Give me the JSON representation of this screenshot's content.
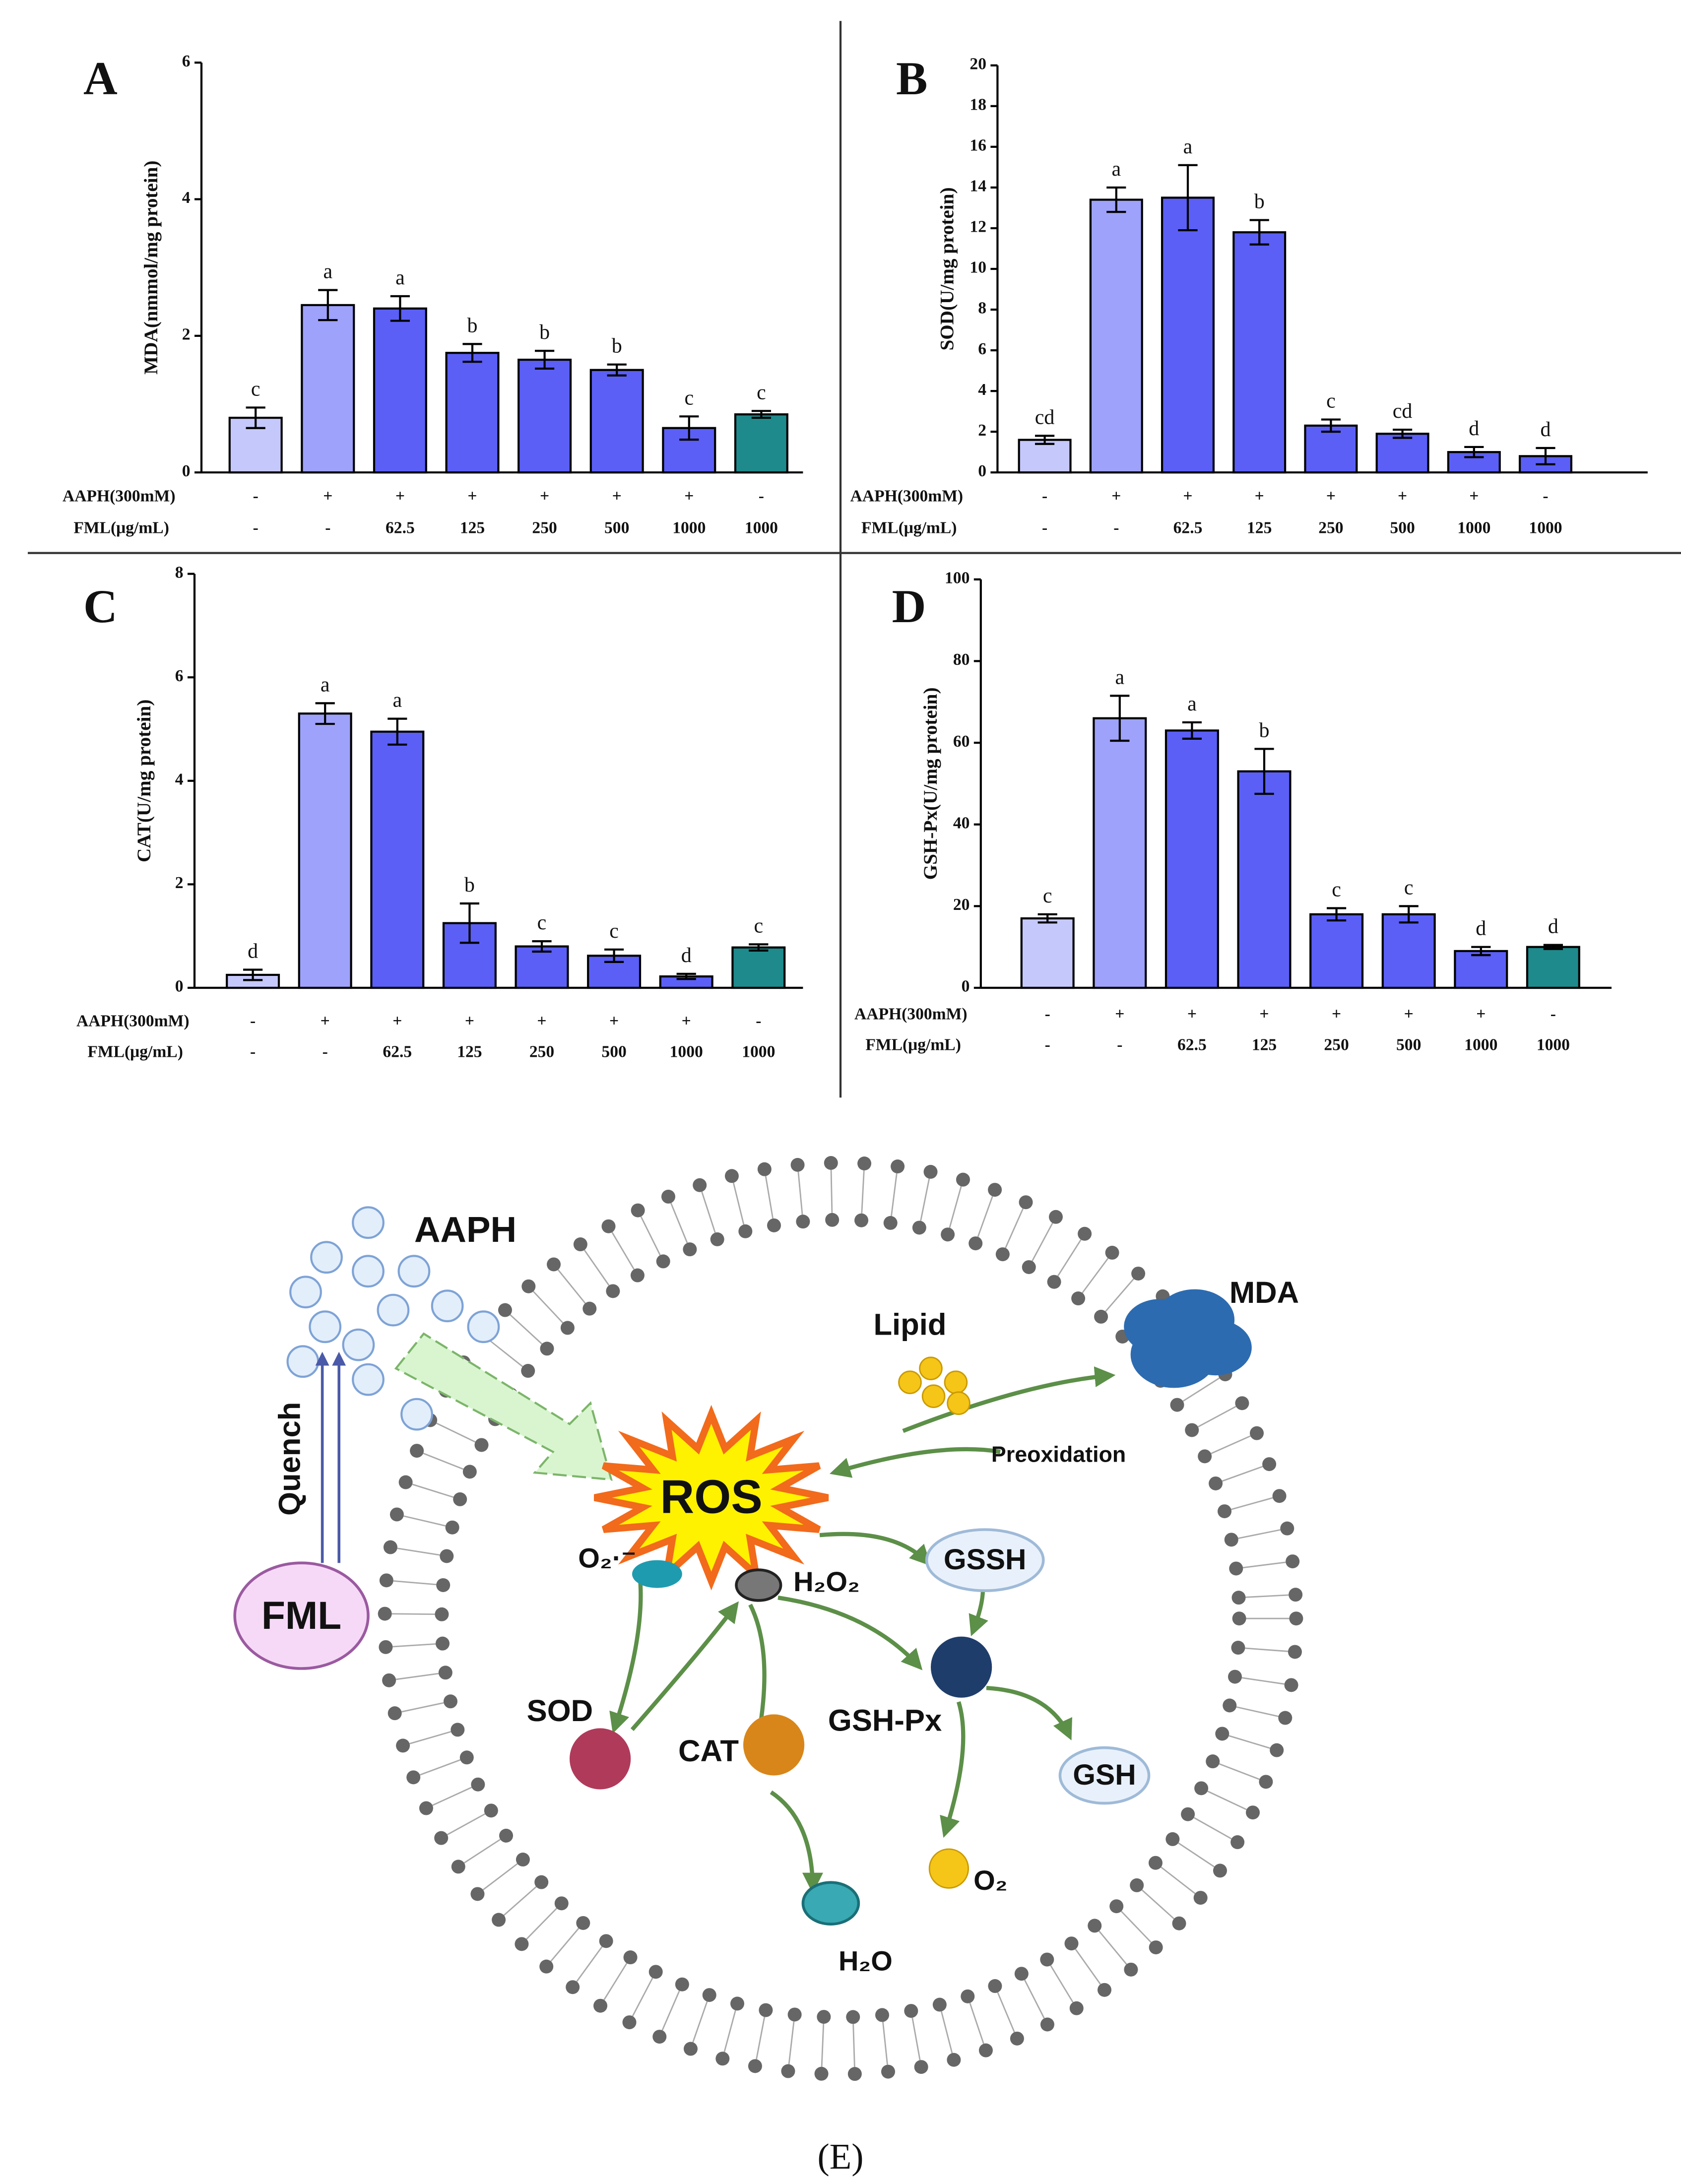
{
  "chart_data": [
    {
      "type": "bar",
      "panel": "A",
      "ylabel": "MDA(nmmol/mg protein)",
      "row_labels": [
        "AAPH(300mM)",
        "FML(μg/mL)"
      ],
      "aaph": [
        "-",
        "+",
        "+",
        "+",
        "+",
        "+",
        "+",
        "-"
      ],
      "fml": [
        "-",
        "-",
        "62.5",
        "125",
        "250",
        "500",
        "1000",
        "1000"
      ],
      "values": [
        0.8,
        2.45,
        2.4,
        1.75,
        1.65,
        1.5,
        0.65,
        0.85
      ],
      "errors": [
        0.15,
        0.22,
        0.18,
        0.13,
        0.13,
        0.08,
        0.17,
        0.05
      ],
      "letters": [
        "c",
        "a",
        "a",
        "b",
        "b",
        "b",
        "c",
        "c"
      ],
      "colors": [
        "#c5c8fb",
        "#9ea2fb",
        "#5b5ff6",
        "#5b5ff6",
        "#5b5ff6",
        "#5b5ff6",
        "#5b5ff6",
        "#1e8a8c"
      ],
      "ylim": [
        0,
        6
      ],
      "yticks": [
        0,
        2,
        4,
        6
      ]
    },
    {
      "type": "bar",
      "panel": "B",
      "ylabel": "SOD(U/mg protein)",
      "row_labels": [
        "AAPH(300mM)",
        "FML(μg/mL)"
      ],
      "aaph": [
        "-",
        "+",
        "+",
        "+",
        "+",
        "+",
        "+",
        "-"
      ],
      "fml": [
        "-",
        "-",
        "62.5",
        "125",
        "250",
        "500",
        "1000",
        "1000"
      ],
      "values": [
        1.6,
        13.4,
        13.5,
        11.8,
        2.3,
        1.9,
        1.0,
        0.8
      ],
      "errors": [
        0.2,
        0.6,
        1.6,
        0.6,
        0.3,
        0.2,
        0.25,
        0.4
      ],
      "letters": [
        "cd",
        "a",
        "a",
        "b",
        "c",
        "cd",
        "d",
        "d"
      ],
      "colors": [
        "#c5c8fb",
        "#9ea2fb",
        "#5b5ff6",
        "#5b5ff6",
        "#5b5ff6",
        "#5b5ff6",
        "#5b5ff6",
        "#5b5ff6"
      ],
      "ylim": [
        0,
        20
      ],
      "yticks": [
        0,
        2,
        4,
        6,
        8,
        10,
        12,
        14,
        16,
        18,
        20
      ]
    },
    {
      "type": "bar",
      "panel": "C",
      "ylabel": "CAT(U/mg protein)",
      "row_labels": [
        "AAPH(300mM)",
        "FML(μg/mL)"
      ],
      "aaph": [
        "-",
        "+",
        "+",
        "+",
        "+",
        "+",
        "+",
        "-"
      ],
      "fml": [
        "-",
        "-",
        "62.5",
        "125",
        "250",
        "500",
        "1000",
        "1000"
      ],
      "values": [
        0.25,
        5.3,
        4.95,
        1.25,
        0.8,
        0.62,
        0.22,
        0.78
      ],
      "errors": [
        0.1,
        0.2,
        0.25,
        0.38,
        0.1,
        0.12,
        0.05,
        0.06
      ],
      "letters": [
        "d",
        "a",
        "a",
        "b",
        "c",
        "c",
        "d",
        "c"
      ],
      "colors": [
        "#c5c8fb",
        "#9ea2fb",
        "#5b5ff6",
        "#5b5ff6",
        "#5b5ff6",
        "#5b5ff6",
        "#5b5ff6",
        "#1e8a8c"
      ],
      "ylim": [
        0,
        8
      ],
      "yticks": [
        0,
        2,
        4,
        6,
        8
      ]
    },
    {
      "type": "bar",
      "panel": "D",
      "ylabel": "GSH-Px(U/mg protein)",
      "row_labels": [
        "AAPH(300mM)",
        "FML(μg/mL)"
      ],
      "aaph": [
        "-",
        "+",
        "+",
        "+",
        "+",
        "+",
        "+",
        "-"
      ],
      "fml": [
        "-",
        "-",
        "62.5",
        "125",
        "250",
        "500",
        "1000",
        "1000"
      ],
      "values": [
        17,
        66,
        63,
        53,
        18,
        18,
        9,
        10
      ],
      "errors": [
        1,
        5.5,
        2,
        5.5,
        1.5,
        2,
        1,
        0.5
      ],
      "letters": [
        "c",
        "a",
        "a",
        "b",
        "c",
        "c",
        "d",
        "d"
      ],
      "colors": [
        "#c5c8fb",
        "#9ea2fb",
        "#5b5ff6",
        "#5b5ff6",
        "#5b5ff6",
        "#5b5ff6",
        "#5b5ff6",
        "#1e8a8c"
      ],
      "ylim": [
        0,
        100
      ],
      "yticks": [
        0,
        20,
        40,
        60,
        80,
        100
      ]
    }
  ],
  "diagram": {
    "aaph": "AAPH",
    "mda": "MDA",
    "lipid": "Lipid",
    "peroxidation": "Preoxidation",
    "ros": "ROS",
    "quench": "Quench",
    "fml": "FML",
    "gssh": "GSSH",
    "gshpx": "GSH-Px",
    "sod": "SOD",
    "cat": "CAT",
    "gsh": "GSH",
    "o2": "O₂",
    "h2o": "H₂O",
    "h2o2": "H₂O₂",
    "superoxide": "O₂·⁻",
    "caption": "(E)"
  }
}
